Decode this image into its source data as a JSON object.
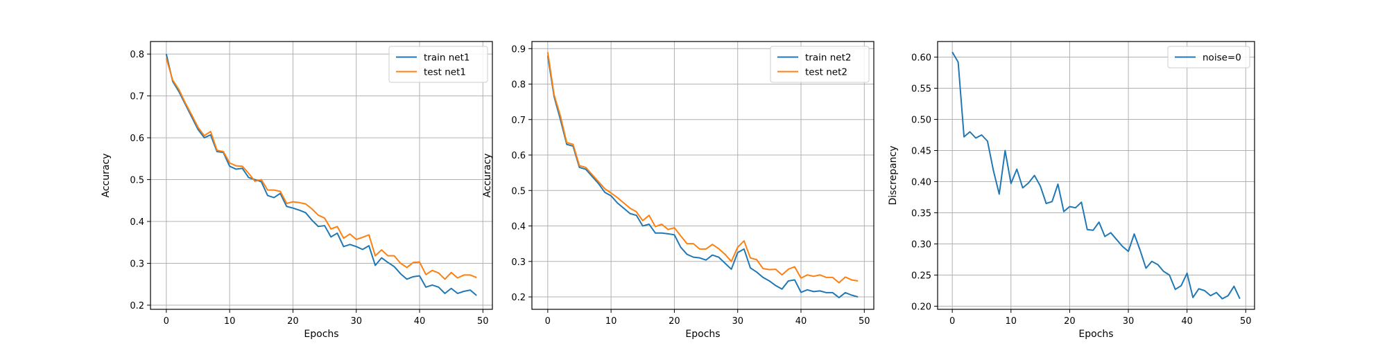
{
  "colors": {
    "series_blue": "#1f77b4",
    "series_orange": "#ff7f0e",
    "grid": "#b0b0b0",
    "axis": "#000000"
  },
  "chart_data": [
    {
      "type": "line",
      "xlabel": "Epochs",
      "ylabel": "Accuracy",
      "xlim": [
        -2.5,
        51.5
      ],
      "ylim": [
        0.19,
        0.83
      ],
      "xticks": [
        0,
        10,
        20,
        30,
        40,
        50
      ],
      "yticks": [
        0.2,
        0.3,
        0.4,
        0.5,
        0.6,
        0.7,
        0.8
      ],
      "ytick_labels": [
        "0.2",
        "0.3",
        "0.4",
        "0.5",
        "0.6",
        "0.7",
        "0.8"
      ],
      "grid": true,
      "legend_position": "top-right",
      "series": [
        {
          "name": "train net1",
          "color": "#1f77b4",
          "x": [
            0,
            1,
            2,
            3,
            4,
            5,
            6,
            7,
            8,
            9,
            10,
            11,
            12,
            13,
            14,
            15,
            16,
            17,
            18,
            19,
            20,
            21,
            22,
            23,
            24,
            25,
            26,
            27,
            28,
            29,
            30,
            31,
            32,
            33,
            34,
            35,
            36,
            37,
            38,
            39,
            40,
            41,
            42,
            43,
            44,
            45,
            46,
            47,
            48,
            49
          ],
          "values": [
            0.8,
            0.735,
            0.71,
            0.68,
            0.65,
            0.62,
            0.6,
            0.607,
            0.567,
            0.565,
            0.532,
            0.525,
            0.527,
            0.505,
            0.5,
            0.495,
            0.462,
            0.457,
            0.467,
            0.436,
            0.432,
            0.427,
            0.421,
            0.403,
            0.388,
            0.39,
            0.363,
            0.372,
            0.34,
            0.345,
            0.34,
            0.333,
            0.342,
            0.295,
            0.313,
            0.302,
            0.292,
            0.275,
            0.262,
            0.268,
            0.27,
            0.243,
            0.248,
            0.243,
            0.228,
            0.24,
            0.228,
            0.233,
            0.236,
            0.223
          ]
        },
        {
          "name": "test net1",
          "color": "#ff7f0e",
          "x": [
            0,
            1,
            2,
            3,
            4,
            5,
            6,
            7,
            8,
            9,
            10,
            11,
            12,
            13,
            14,
            15,
            16,
            17,
            18,
            19,
            20,
            21,
            22,
            23,
            24,
            25,
            26,
            27,
            28,
            29,
            30,
            31,
            32,
            33,
            34,
            35,
            36,
            37,
            38,
            39,
            40,
            41,
            42,
            43,
            44,
            45,
            46,
            47,
            48,
            49
          ],
          "values": [
            0.79,
            0.738,
            0.715,
            0.683,
            0.655,
            0.625,
            0.605,
            0.615,
            0.57,
            0.567,
            0.54,
            0.533,
            0.532,
            0.515,
            0.496,
            0.5,
            0.475,
            0.475,
            0.472,
            0.443,
            0.447,
            0.445,
            0.442,
            0.43,
            0.415,
            0.408,
            0.382,
            0.388,
            0.36,
            0.37,
            0.357,
            0.362,
            0.368,
            0.318,
            0.332,
            0.318,
            0.318,
            0.3,
            0.29,
            0.302,
            0.303,
            0.273,
            0.283,
            0.277,
            0.262,
            0.278,
            0.265,
            0.272,
            0.272,
            0.266
          ]
        }
      ]
    },
    {
      "type": "line",
      "xlabel": "Epochs",
      "ylabel": "Accuracy",
      "xlim": [
        -2.5,
        51.5
      ],
      "ylim": [
        0.165,
        0.92
      ],
      "xticks": [
        0,
        10,
        20,
        30,
        40,
        50
      ],
      "yticks": [
        0.2,
        0.3,
        0.4,
        0.5,
        0.6,
        0.7,
        0.8,
        0.9
      ],
      "ytick_labels": [
        "0.2",
        "0.3",
        "0.4",
        "0.5",
        "0.6",
        "0.7",
        "0.8",
        "0.9"
      ],
      "grid": true,
      "legend_position": "top-right",
      "series": [
        {
          "name": "train net2",
          "color": "#1f77b4",
          "x": [
            0,
            1,
            2,
            3,
            4,
            5,
            6,
            7,
            8,
            9,
            10,
            11,
            12,
            13,
            14,
            15,
            16,
            17,
            18,
            19,
            20,
            21,
            22,
            23,
            24,
            25,
            26,
            27,
            28,
            29,
            30,
            31,
            32,
            33,
            34,
            35,
            36,
            37,
            38,
            39,
            40,
            41,
            42,
            43,
            44,
            45,
            46,
            47,
            48,
            49
          ],
          "values": [
            0.88,
            0.765,
            0.7,
            0.63,
            0.625,
            0.565,
            0.56,
            0.54,
            0.52,
            0.495,
            0.485,
            0.465,
            0.45,
            0.435,
            0.43,
            0.4,
            0.405,
            0.38,
            0.38,
            0.378,
            0.375,
            0.34,
            0.32,
            0.312,
            0.31,
            0.304,
            0.318,
            0.312,
            0.295,
            0.278,
            0.325,
            0.335,
            0.282,
            0.27,
            0.255,
            0.245,
            0.232,
            0.222,
            0.245,
            0.248,
            0.213,
            0.22,
            0.215,
            0.217,
            0.212,
            0.212,
            0.198,
            0.212,
            0.205,
            0.2
          ]
        },
        {
          "name": "test net2",
          "color": "#ff7f0e",
          "x": [
            0,
            1,
            2,
            3,
            4,
            5,
            6,
            7,
            8,
            9,
            10,
            11,
            12,
            13,
            14,
            15,
            16,
            17,
            18,
            19,
            20,
            21,
            22,
            23,
            24,
            25,
            26,
            27,
            28,
            29,
            30,
            31,
            32,
            33,
            34,
            35,
            36,
            37,
            38,
            39,
            40,
            41,
            42,
            43,
            44,
            45,
            46,
            47,
            48,
            49
          ],
          "values": [
            0.89,
            0.77,
            0.71,
            0.635,
            0.63,
            0.57,
            0.565,
            0.545,
            0.525,
            0.505,
            0.493,
            0.48,
            0.465,
            0.45,
            0.44,
            0.415,
            0.43,
            0.398,
            0.405,
            0.39,
            0.395,
            0.372,
            0.35,
            0.35,
            0.335,
            0.335,
            0.348,
            0.336,
            0.32,
            0.3,
            0.34,
            0.358,
            0.31,
            0.305,
            0.28,
            0.277,
            0.278,
            0.262,
            0.278,
            0.285,
            0.253,
            0.262,
            0.258,
            0.262,
            0.255,
            0.255,
            0.24,
            0.256,
            0.248,
            0.245
          ]
        }
      ]
    },
    {
      "type": "line",
      "xlabel": "Epochs",
      "ylabel": "Discrepancy",
      "xlim": [
        -2.5,
        51.5
      ],
      "ylim": [
        0.195,
        0.625
      ],
      "xticks": [
        0,
        10,
        20,
        30,
        40,
        50
      ],
      "yticks": [
        0.2,
        0.25,
        0.3,
        0.35,
        0.4,
        0.45,
        0.5,
        0.55,
        0.6
      ],
      "ytick_labels": [
        "0.20",
        "0.25",
        "0.30",
        "0.35",
        "0.40",
        "0.45",
        "0.50",
        "0.55",
        "0.60"
      ],
      "grid": true,
      "legend_position": "top-right",
      "series": [
        {
          "name": "noise=0",
          "color": "#1f77b4",
          "x": [
            0,
            1,
            2,
            3,
            4,
            5,
            6,
            7,
            8,
            9,
            10,
            11,
            12,
            13,
            14,
            15,
            16,
            17,
            18,
            19,
            20,
            21,
            22,
            23,
            24,
            25,
            26,
            27,
            28,
            29,
            30,
            31,
            32,
            33,
            34,
            35,
            36,
            37,
            38,
            39,
            40,
            41,
            42,
            43,
            44,
            45,
            46,
            47,
            48,
            49
          ],
          "values": [
            0.608,
            0.592,
            0.472,
            0.48,
            0.47,
            0.475,
            0.465,
            0.418,
            0.38,
            0.45,
            0.397,
            0.42,
            0.39,
            0.398,
            0.41,
            0.393,
            0.365,
            0.368,
            0.396,
            0.352,
            0.36,
            0.358,
            0.367,
            0.323,
            0.322,
            0.335,
            0.312,
            0.318,
            0.307,
            0.296,
            0.288,
            0.316,
            0.29,
            0.261,
            0.272,
            0.267,
            0.256,
            0.25,
            0.227,
            0.233,
            0.253,
            0.214,
            0.228,
            0.225,
            0.217,
            0.222,
            0.212,
            0.217,
            0.232,
            0.212
          ]
        }
      ]
    }
  ]
}
